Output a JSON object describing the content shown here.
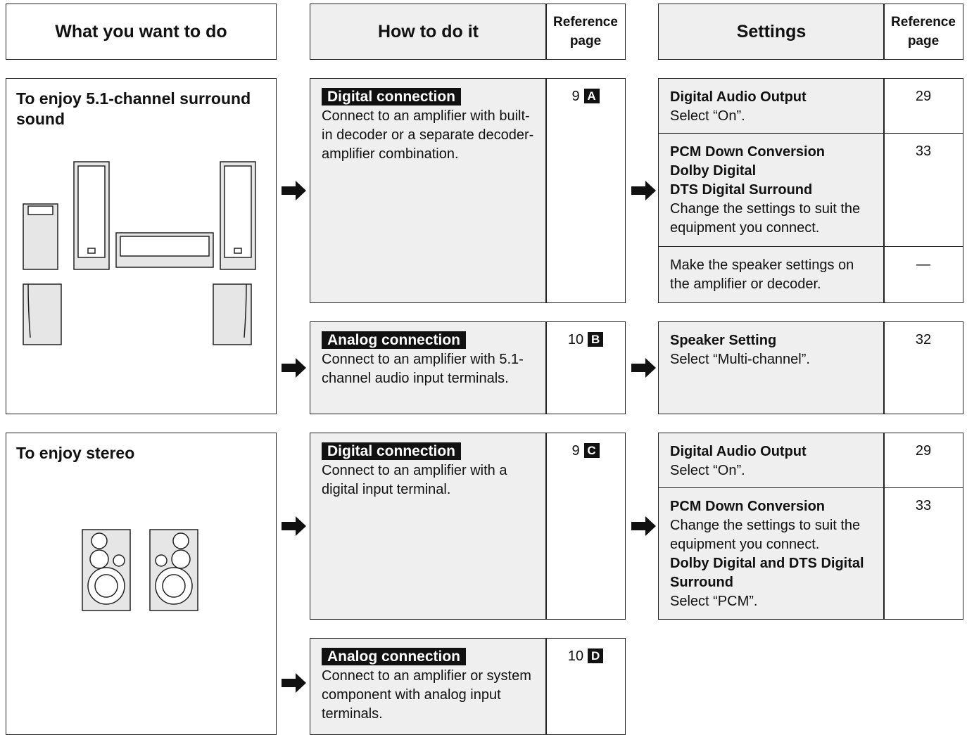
{
  "headers": {
    "want": "What you want to do",
    "how": "How to do it",
    "how_ref": "Reference page",
    "settings": "Settings",
    "settings_ref": "Reference page"
  },
  "sections": [
    {
      "goal": "To enjoy 5.1-channel surround sound",
      "connections": [
        {
          "label": "Digital connection",
          "text": "Connect to an amplifier with built-in decoder or a separate decoder-amplifier combination.",
          "ref_page": "9",
          "ref_letter": "A",
          "settings": [
            {
              "lines": [
                {
                  "text": "Digital Audio Output",
                  "bold": true
                },
                {
                  "text": "Select “On”.",
                  "bold": false
                }
              ],
              "ref": "29"
            },
            {
              "lines": [
                {
                  "text": "PCM Down Conversion",
                  "bold": true
                },
                {
                  "text": "Dolby Digital",
                  "bold": true
                },
                {
                  "text": "DTS Digital Surround",
                  "bold": true
                },
                {
                  "text": "Change the settings to suit the equipment you connect.",
                  "bold": false
                }
              ],
              "ref": "33"
            },
            {
              "lines": [
                {
                  "text": "Make the speaker settings on the amplifier or decoder.",
                  "bold": false
                }
              ],
              "ref": "—"
            }
          ]
        },
        {
          "label": "Analog connection",
          "text": "Connect to an amplifier with 5.1-channel audio input terminals.",
          "ref_page": "10",
          "ref_letter": "B",
          "settings": [
            {
              "lines": [
                {
                  "text": "Speaker Setting",
                  "bold": true
                },
                {
                  "text": "Select “Multi-channel”.",
                  "bold": false
                }
              ],
              "ref": "32"
            }
          ]
        }
      ]
    },
    {
      "goal": "To enjoy stereo",
      "connections": [
        {
          "label": "Digital connection",
          "text": "Connect to an amplifier with a digital input terminal.",
          "ref_page": "9",
          "ref_letter": "C",
          "settings": [
            {
              "lines": [
                {
                  "text": "Digital Audio Output",
                  "bold": true
                },
                {
                  "text": "Select “On”.",
                  "bold": false
                }
              ],
              "ref": "29"
            },
            {
              "lines": [
                {
                  "text": "PCM Down Conversion",
                  "bold": true
                },
                {
                  "text": "Change the settings to suit the equipment you connect.",
                  "bold": false
                },
                {
                  "text": "Dolby Digital and DTS Digital Surround",
                  "bold": true
                },
                {
                  "text": "Select “PCM”.",
                  "bold": false
                }
              ],
              "ref": "33"
            }
          ]
        },
        {
          "label": "Analog connection",
          "text": "Connect to an amplifier or system component with analog input terminals.",
          "ref_page": "10",
          "ref_letter": "D",
          "settings": []
        }
      ]
    }
  ]
}
